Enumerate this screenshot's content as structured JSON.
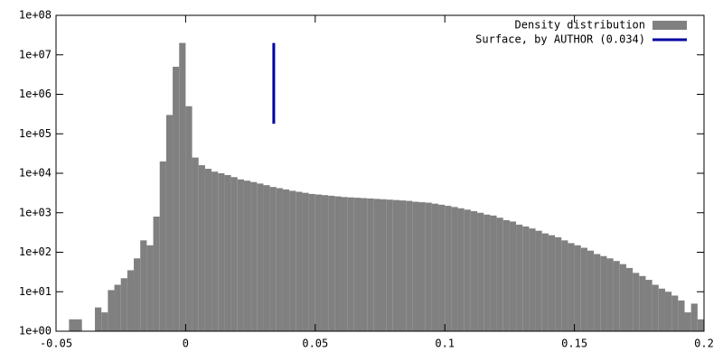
{
  "chart_data": {
    "type": "histogram",
    "log_y": true,
    "legend": "top-right",
    "xlim": [
      -0.05,
      0.2
    ],
    "ylim": [
      1,
      100000000
    ],
    "xticks": [
      -0.05,
      0,
      0.05,
      0.1,
      0.15,
      0.2
    ],
    "yticks": [
      {
        "value": 1,
        "label": "1e+00"
      },
      {
        "value": 10,
        "label": "1e+01"
      },
      {
        "value": 100,
        "label": "1e+02"
      },
      {
        "value": 1000,
        "label": "1e+03"
      },
      {
        "value": 10000,
        "label": "1e+04"
      },
      {
        "value": 100000,
        "label": "1e+05"
      },
      {
        "value": 1000000,
        "label": "1e+06"
      },
      {
        "value": 10000000,
        "label": "1e+07"
      },
      {
        "value": 100000000,
        "label": "1e+08"
      }
    ],
    "bins": [
      -0.05,
      -0.0475,
      -0.045,
      -0.0425,
      -0.04,
      -0.0375,
      -0.035,
      -0.0325,
      -0.03,
      -0.0275,
      -0.025,
      -0.0225,
      -0.02,
      -0.0175,
      -0.015,
      -0.0125,
      -0.01,
      -0.0075,
      -0.005,
      -0.0025,
      0,
      0.0025,
      0.005,
      0.0075,
      0.01,
      0.0125,
      0.015,
      0.0175,
      0.02,
      0.0225,
      0.025,
      0.0275,
      0.03,
      0.0325,
      0.035,
      0.0375,
      0.04,
      0.0425,
      0.045,
      0.0475,
      0.05,
      0.0525,
      0.055,
      0.0575,
      0.06,
      0.0625,
      0.065,
      0.0675,
      0.07,
      0.0725,
      0.075,
      0.0775,
      0.08,
      0.0825,
      0.085,
      0.0875,
      0.09,
      0.0925,
      0.095,
      0.0975,
      0.1,
      0.1025,
      0.105,
      0.1075,
      0.11,
      0.1125,
      0.115,
      0.1175,
      0.12,
      0.1225,
      0.125,
      0.1275,
      0.13,
      0.1325,
      0.135,
      0.1375,
      0.14,
      0.1425,
      0.145,
      0.1475,
      0.15,
      0.1525,
      0.155,
      0.1575,
      0.16,
      0.1625,
      0.165,
      0.1675,
      0.17,
      0.1725,
      0.175,
      0.1775,
      0.18,
      0.1825,
      0.185,
      0.1875,
      0.19,
      0.1925,
      0.195,
      0.1975,
      0.2
    ],
    "series": [
      {
        "name": "Density distribution",
        "color": "#808080",
        "values": [
          0,
          0,
          2,
          2,
          0,
          0,
          4,
          3,
          11,
          15,
          22,
          35,
          70,
          200,
          150,
          800,
          20000,
          300000,
          5000000,
          20000000,
          500000,
          25000,
          16000,
          13000,
          11000,
          10000,
          9000,
          8000,
          7000,
          6500,
          6000,
          5500,
          5000,
          4500,
          4200,
          3900,
          3600,
          3400,
          3200,
          3000,
          2900,
          2800,
          2700,
          2600,
          2500,
          2450,
          2400,
          2350,
          2300,
          2250,
          2200,
          2150,
          2100,
          2050,
          2000,
          1900,
          1850,
          1800,
          1700,
          1600,
          1500,
          1400,
          1300,
          1200,
          1100,
          1000,
          900,
          850,
          750,
          650,
          600,
          500,
          450,
          400,
          350,
          300,
          270,
          240,
          200,
          170,
          150,
          130,
          110,
          90,
          80,
          70,
          60,
          50,
          40,
          30,
          25,
          20,
          15,
          12,
          10,
          8,
          6,
          3,
          5,
          2
        ]
      }
    ],
    "lines": [
      {
        "name": "Surface, by AUTHOR (0.034)",
        "color": "#0000a0",
        "x": 0.034,
        "y": [
          180000,
          20000000
        ]
      }
    ]
  }
}
